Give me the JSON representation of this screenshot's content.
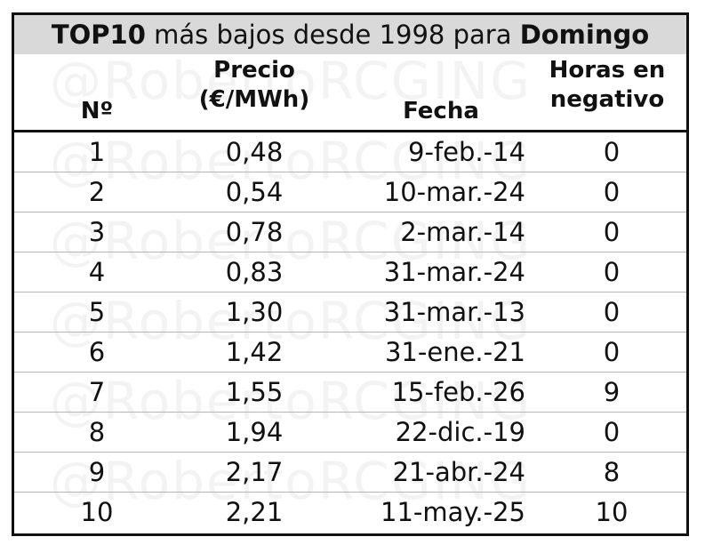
{
  "title": {
    "prefix": "TOP10",
    "middle": " más bajos desde 1998 para ",
    "suffix": "Domingo"
  },
  "watermark": "@RobertoRCGING",
  "headers": {
    "no": "Nº",
    "price_line1": "Precio",
    "price_line2": "(€/MWh)",
    "date": "Fecha",
    "neg_line1": "Horas en",
    "neg_line2": "negativo"
  },
  "rows": [
    {
      "no": "1",
      "price": "0,48",
      "date": "9-feb.-14",
      "neg": "0"
    },
    {
      "no": "2",
      "price": "0,54",
      "date": "10-mar.-24",
      "neg": "0"
    },
    {
      "no": "3",
      "price": "0,78",
      "date": "2-mar.-14",
      "neg": "0"
    },
    {
      "no": "4",
      "price": "0,83",
      "date": "31-mar.-24",
      "neg": "0"
    },
    {
      "no": "5",
      "price": "1,30",
      "date": "31-mar.-13",
      "neg": "0"
    },
    {
      "no": "6",
      "price": "1,42",
      "date": "31-ene.-21",
      "neg": "0"
    },
    {
      "no": "7",
      "price": "1,55",
      "date": "15-feb.-26",
      "neg": "9"
    },
    {
      "no": "8",
      "price": "1,94",
      "date": "22-dic.-19",
      "neg": "0"
    },
    {
      "no": "9",
      "price": "2,17",
      "date": "21-abr.-24",
      "neg": "8"
    },
    {
      "no": "10",
      "price": "2,21",
      "date": "11-may.-25",
      "neg": "10"
    }
  ]
}
